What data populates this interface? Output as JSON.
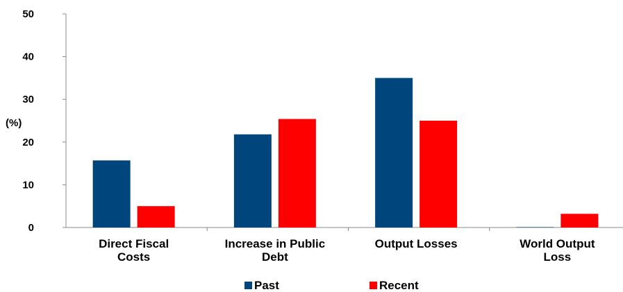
{
  "chart_data": {
    "type": "bar",
    "title": "",
    "xlabel": "",
    "ylabel": "(%)",
    "ylim": [
      0,
      50
    ],
    "yticks": [
      "0",
      "10",
      "20",
      "30",
      "40",
      "50"
    ],
    "categories": [
      [
        "Direct Fiscal",
        "Costs"
      ],
      [
        "Increase in Public",
        "Debt"
      ],
      [
        "Output Losses"
      ],
      [
        "World Output",
        "Loss"
      ]
    ],
    "series": [
      {
        "name": "Past",
        "color": "#00457C",
        "values": [
          15.7,
          21.8,
          35.0,
          0.1
        ]
      },
      {
        "name": "Recent",
        "color": "#FF0000",
        "values": [
          5.0,
          25.4,
          25.0,
          3.2
        ]
      }
    ],
    "grid": false,
    "legend_position": "bottom"
  }
}
